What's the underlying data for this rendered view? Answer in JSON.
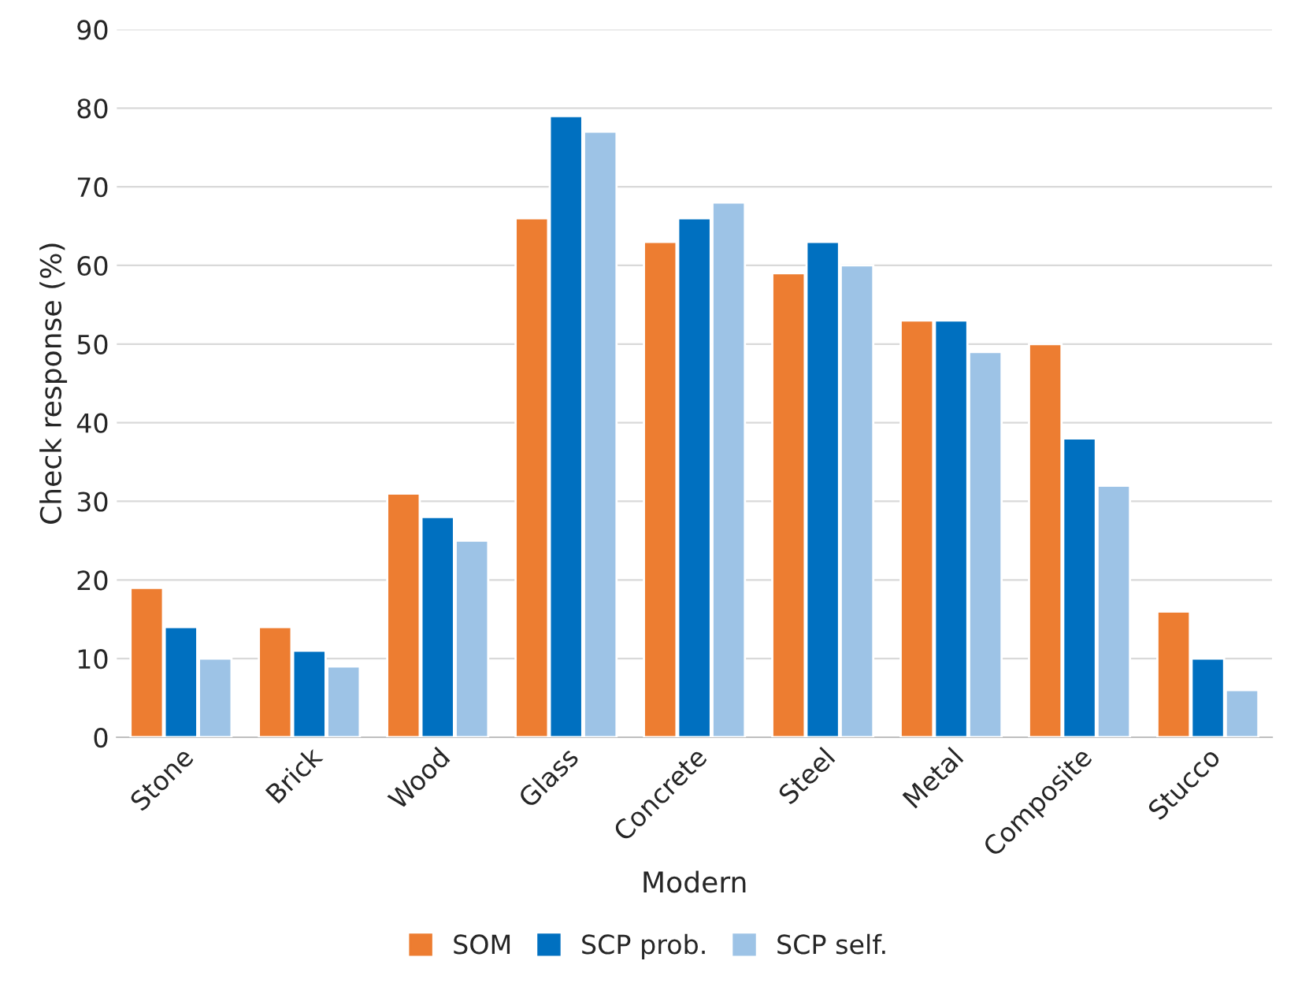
{
  "chart_data": {
    "type": "bar",
    "xlabel": "Modern",
    "ylabel": "Check response (%)",
    "categories": [
      "Stone",
      "Brick",
      "Wood",
      "Glass",
      "Concrete",
      "Steel",
      "Metal",
      "Composite",
      "Stucco"
    ],
    "series": [
      {
        "name": "SOM",
        "color": "#ed7d31",
        "values": [
          19,
          14,
          31,
          66,
          63,
          59,
          53,
          50,
          16
        ]
      },
      {
        "name": "SCP prob.",
        "color": "#0070c0",
        "values": [
          14,
          11,
          28,
          79,
          66,
          63,
          53,
          38,
          10
        ]
      },
      {
        "name": "SCP self.",
        "color": "#9dc3e6",
        "values": [
          10,
          9,
          25,
          77,
          68,
          60,
          49,
          32,
          6
        ]
      }
    ],
    "ylim": [
      0,
      90
    ],
    "yticks": [
      0,
      10,
      20,
      30,
      40,
      50,
      60,
      70,
      80,
      90
    ],
    "grid": "y",
    "legend": "bottom"
  }
}
